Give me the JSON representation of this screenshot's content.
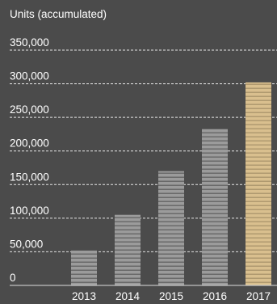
{
  "chart_data": {
    "type": "bar",
    "ylabel": "Units (accumulated)",
    "categories": [
      "2013",
      "2014",
      "2015",
      "2016",
      "2017"
    ],
    "values": [
      52000,
      105000,
      170000,
      233000,
      302000
    ],
    "ylim": [
      0,
      350000
    ],
    "yticks": [
      {
        "value": 0,
        "label": "0"
      },
      {
        "value": 50000,
        "label": "50,000"
      },
      {
        "value": 100000,
        "label": "100,000"
      },
      {
        "value": 150000,
        "label": "150,000"
      },
      {
        "value": 200000,
        "label": "200,000"
      },
      {
        "value": 250000,
        "label": "250,000"
      },
      {
        "value": 300000,
        "label": "300,000"
      },
      {
        "value": 350000,
        "label": "350,000"
      }
    ],
    "grid": true,
    "colors": {
      "bar": "#9b9b9b",
      "bar_highlight": "#d9bf8e",
      "stripe": "#6a6a6a",
      "stripe_highlight": "#b09a70",
      "background": "#4b4b4b"
    },
    "highlight_index": 4
  }
}
